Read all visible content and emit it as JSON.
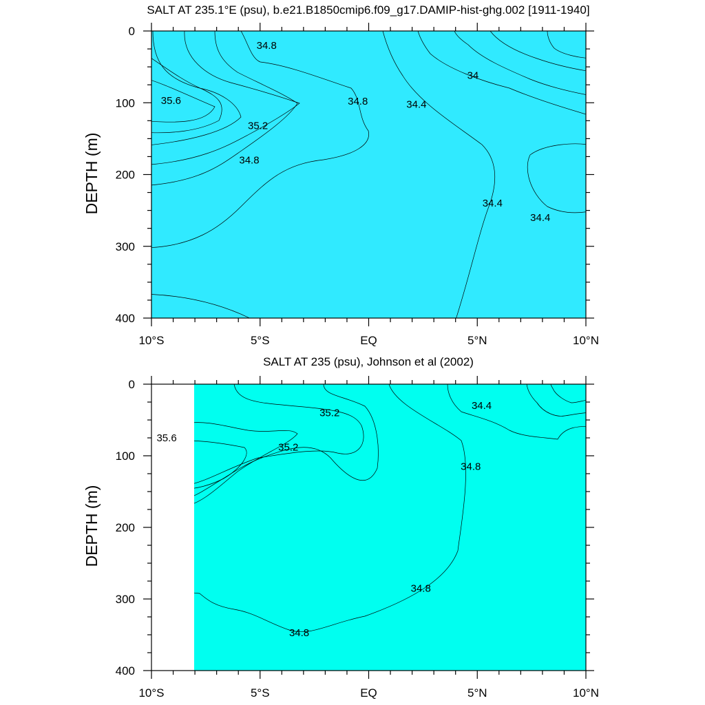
{
  "chart_data": [
    {
      "type": "contour",
      "title": "SALT AT 235.1°E (psu), b.e21.B1850cmip6.f09_g17.DAMIP-hist-ghg.002 [1911-1940]",
      "ylabel": "DEPTH (m)",
      "xlabel": "",
      "xlim": [
        -10,
        10
      ],
      "ylim": [
        400,
        0
      ],
      "x_ticks": [
        -10,
        -5,
        0,
        5,
        10
      ],
      "x_tick_labels": [
        "10°S",
        "5°S",
        "EQ",
        "5°N",
        "10°N"
      ],
      "y_ticks": [
        0,
        100,
        200,
        300,
        400
      ],
      "y_tick_labels": [
        "0",
        "100",
        "200",
        "300",
        "400"
      ],
      "contour_labels": [
        {
          "text": "34.8",
          "x": -4.7,
          "y": 20
        },
        {
          "text": "34.8",
          "x": -0.5,
          "y": 98
        },
        {
          "text": "35.6",
          "x": -9.1,
          "y": 97
        },
        {
          "text": "35.2",
          "x": -5.1,
          "y": 132
        },
        {
          "text": "34.8",
          "x": -5.5,
          "y": 180
        },
        {
          "text": "34.4",
          "x": 2.2,
          "y": 102
        },
        {
          "text": "34",
          "x": 4.8,
          "y": 62
        },
        {
          "text": "34.4",
          "x": 5.7,
          "y": 240
        },
        {
          "text": "34.4",
          "x": 7.9,
          "y": 260
        }
      ],
      "colors": {
        "s33_8": "#0000ff",
        "s34_0": "#005aff",
        "s34_2": "#00a0ff",
        "s34_4": "#00c8ff",
        "s34_6": "#30eaff",
        "s34_8": "#00fff0",
        "s35_0": "#00ffbe",
        "s35_2": "#00ff6e",
        "s35_4": "#1eff1e",
        "s35_6": "#96ff00",
        "s35_8": "#ffff00"
      }
    },
    {
      "type": "contour",
      "title": "SALT AT 235 (psu), Johnson et al (2002)",
      "ylabel": "DEPTH (m)",
      "xlabel": "",
      "xlim": [
        -10,
        10
      ],
      "ylim": [
        400,
        0
      ],
      "x_ticks": [
        -10,
        -5,
        0,
        5,
        10
      ],
      "x_tick_labels": [
        "10°S",
        "5°S",
        "EQ",
        "5°N",
        "10°N"
      ],
      "y_ticks": [
        0,
        100,
        200,
        300,
        400
      ],
      "y_tick_labels": [
        "0",
        "100",
        "200",
        "300",
        "400"
      ],
      "contour_labels": [
        {
          "text": "35.2",
          "x": -1.8,
          "y": 40
        },
        {
          "text": "35.6",
          "x": -9.3,
          "y": 75
        },
        {
          "text": "35.2",
          "x": -3.7,
          "y": 88
        },
        {
          "text": "34.4",
          "x": 5.2,
          "y": 30
        },
        {
          "text": "34.8",
          "x": 4.7,
          "y": 115
        },
        {
          "text": "34.8",
          "x": 2.4,
          "y": 285
        },
        {
          "text": "34.8",
          "x": -3.2,
          "y": 347
        }
      ],
      "colors": {
        "s34_2": "#00a0ff",
        "s34_4": "#00c8ff",
        "s34_6": "#30eaff",
        "s34_8": "#00fff0",
        "s35_0": "#00ffbe",
        "s35_2": "#00ff6e",
        "s35_4": "#1eff1e",
        "s35_6": "#96ff00",
        "s35_8": "#ffdc28"
      }
    }
  ]
}
